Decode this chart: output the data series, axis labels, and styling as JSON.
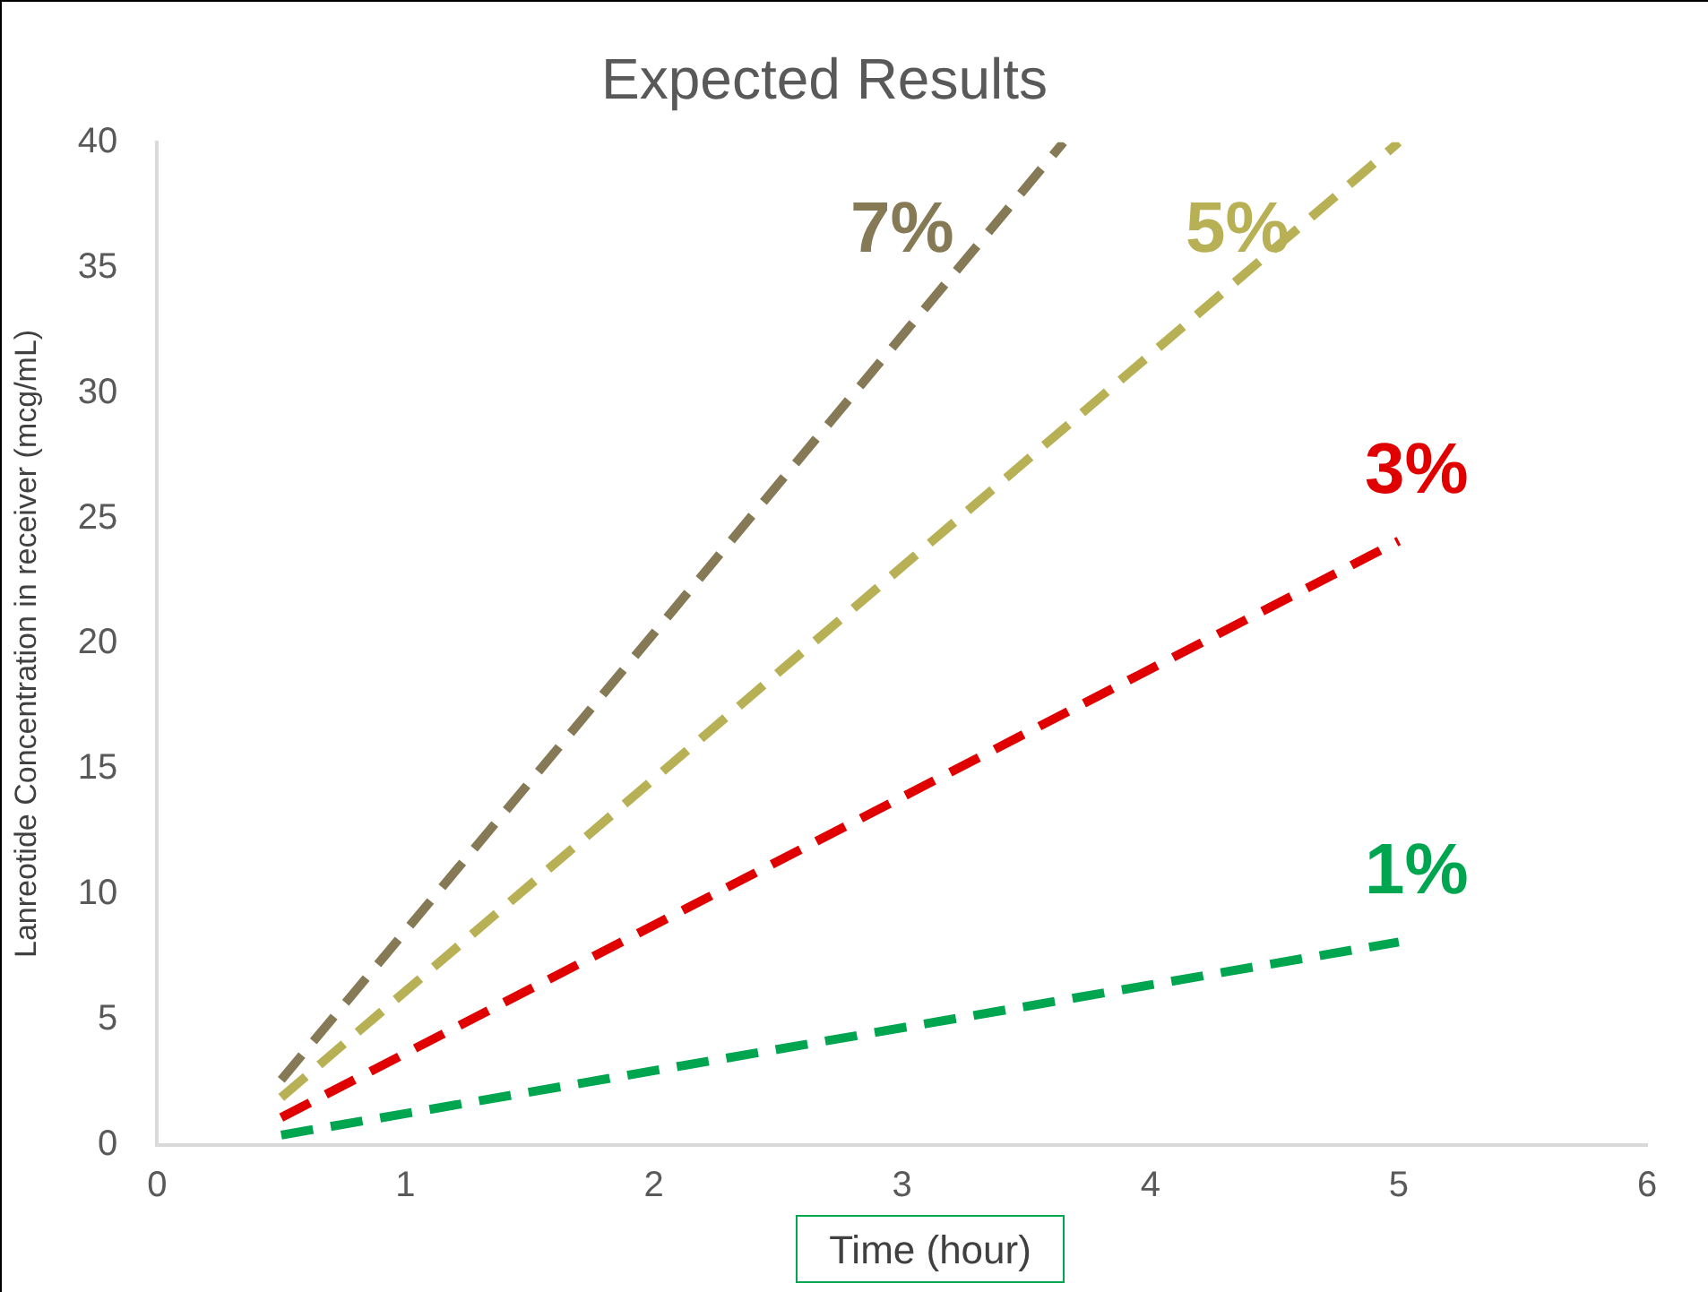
{
  "chart_data": {
    "type": "line",
    "title": "Expected Results",
    "xlabel": "Time (hour)",
    "ylabel": "Lanreotide Concentration in receiver (mcg/mL)",
    "xlim": [
      0,
      6
    ],
    "xticks": [
      0,
      1,
      2,
      3,
      4,
      5,
      6
    ],
    "ylim": [
      0,
      40
    ],
    "yticks": [
      0,
      5,
      10,
      15,
      20,
      25,
      30,
      35,
      40
    ],
    "grid": false,
    "legend": false,
    "line_style": "dashed",
    "marker": "none",
    "series": [
      {
        "name": "7%",
        "color": "#857a55",
        "x": [
          0.5,
          3.65
        ],
        "values": [
          2.6,
          40
        ]
      },
      {
        "name": "5%",
        "color": "#b8b055",
        "x": [
          0.5,
          5
        ],
        "values": [
          1.9,
          40
        ]
      },
      {
        "name": "3%",
        "color": "#e00000",
        "x": [
          0.5,
          5
        ],
        "values": [
          1.1,
          24.1
        ]
      },
      {
        "name": "1%",
        "color": "#00a550",
        "x": [
          0.5,
          5
        ],
        "values": [
          0.4,
          8.1
        ]
      }
    ]
  }
}
